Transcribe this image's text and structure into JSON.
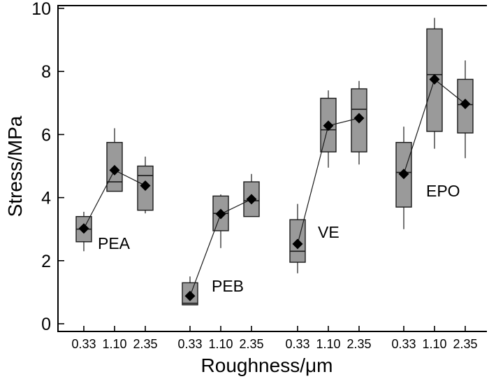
{
  "chart_data": {
    "type": "box",
    "title": "",
    "xlabel": "Roughness/μm",
    "ylabel": "Stress/MPa",
    "ylim": [
      0,
      10
    ],
    "yticks": [
      0,
      2,
      4,
      6,
      8,
      10
    ],
    "categories": [
      "0.33",
      "1.10",
      "2.35"
    ],
    "groups": [
      {
        "name": "PEA",
        "boxes": [
          {
            "roughness": "0.33",
            "min": 2.3,
            "q1": 2.6,
            "median": 3.0,
            "q3": 3.4,
            "max": 3.55,
            "mean": 3.02
          },
          {
            "roughness": "1.10",
            "min": 4.2,
            "q1": 4.2,
            "median": 4.5,
            "q3": 5.75,
            "max": 6.2,
            "mean": 4.87
          },
          {
            "roughness": "2.35",
            "min": 3.5,
            "q1": 3.6,
            "median": 4.7,
            "q3": 5.0,
            "max": 5.3,
            "mean": 4.38
          }
        ]
      },
      {
        "name": "PEB",
        "boxes": [
          {
            "roughness": "0.33",
            "min": 0.6,
            "q1": 0.6,
            "median": 0.65,
            "q3": 1.3,
            "max": 1.5,
            "mean": 0.88
          },
          {
            "roughness": "1.10",
            "min": 2.4,
            "q1": 2.95,
            "median": 3.5,
            "q3": 4.05,
            "max": 4.1,
            "mean": 3.48
          },
          {
            "roughness": "2.35",
            "min": 3.4,
            "q1": 3.4,
            "median": 3.9,
            "q3": 4.5,
            "max": 4.75,
            "mean": 3.95
          }
        ]
      },
      {
        "name": "VE",
        "boxes": [
          {
            "roughness": "0.33",
            "min": 1.6,
            "q1": 1.95,
            "median": 2.3,
            "q3": 3.3,
            "max": 3.8,
            "mean": 2.53
          },
          {
            "roughness": "1.10",
            "min": 4.95,
            "q1": 5.45,
            "median": 6.15,
            "q3": 7.15,
            "max": 7.4,
            "mean": 6.28
          },
          {
            "roughness": "2.35",
            "min": 5.05,
            "q1": 5.45,
            "median": 6.8,
            "q3": 7.45,
            "max": 7.7,
            "mean": 6.52
          }
        ]
      },
      {
        "name": "EPO",
        "boxes": [
          {
            "roughness": "0.33",
            "min": 3.0,
            "q1": 3.7,
            "median": 4.8,
            "q3": 5.75,
            "max": 6.25,
            "mean": 4.75
          },
          {
            "roughness": "1.10",
            "min": 5.55,
            "q1": 6.1,
            "median": 7.9,
            "q3": 9.35,
            "max": 9.7,
            "mean": 7.75
          },
          {
            "roughness": "2.35",
            "min": 5.25,
            "q1": 6.05,
            "median": 6.95,
            "q3": 7.75,
            "max": 8.35,
            "mean": 6.97
          }
        ]
      }
    ],
    "mean_marker": "diamond",
    "mean_connected": true,
    "grid": false
  }
}
